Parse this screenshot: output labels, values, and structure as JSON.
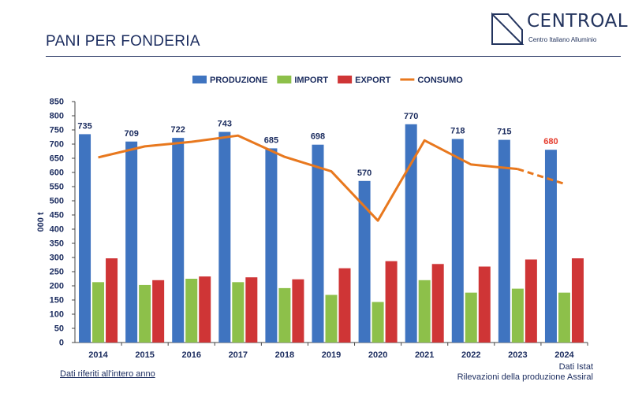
{
  "header": {
    "title": "PANI PER FONDERIA",
    "logo": {
      "name": "CENTROAL",
      "subtitle": "Centro Italiano Alluminio",
      "color": "#23345e"
    }
  },
  "footnotes": {
    "left": "Dati riferiti all'intero anno",
    "right_line1": "Dati Istat",
    "right_line2": "Rilevazioni della produzione Assiral"
  },
  "chart_data": {
    "type": "bar",
    "categories": [
      "2014",
      "2015",
      "2016",
      "2017",
      "2018",
      "2019",
      "2020",
      "2021",
      "2022",
      "2023",
      "2024"
    ],
    "ylabel": "000 t",
    "ylim": [
      0,
      850
    ],
    "yticks": [
      0,
      50,
      100,
      150,
      200,
      250,
      300,
      350,
      400,
      450,
      500,
      550,
      600,
      650,
      700,
      750,
      800,
      850
    ],
    "legend_position": "top-center",
    "grid": false,
    "series": [
      {
        "name": "PRODUZIONE",
        "type": "bar",
        "color": "#3f74c0",
        "values": [
          735,
          709,
          722,
          743,
          685,
          698,
          570,
          770,
          718,
          715,
          680
        ],
        "data_labels": [
          "735",
          "709",
          "722",
          "743",
          "685",
          "698",
          "570",
          "770",
          "718",
          "715",
          "680"
        ],
        "highlight_label_color": "#e53b2c",
        "highlight_index": 10
      },
      {
        "name": "IMPORT",
        "type": "bar",
        "color": "#8dc04a",
        "values": [
          213,
          203,
          225,
          213,
          192,
          168,
          143,
          220,
          176,
          190,
          176
        ]
      },
      {
        "name": "EXPORT",
        "type": "bar",
        "color": "#cf3536",
        "values": [
          297,
          220,
          233,
          230,
          223,
          262,
          287,
          277,
          268,
          293,
          297
        ]
      },
      {
        "name": "CONSUMO",
        "type": "line",
        "color": "#e8781e",
        "values": [
          653,
          692,
          708,
          730,
          655,
          604,
          430,
          713,
          628,
          612,
          560
        ],
        "dashed_last_segment": true
      }
    ]
  }
}
